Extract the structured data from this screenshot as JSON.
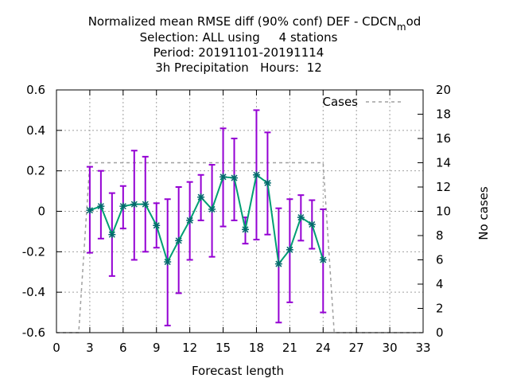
{
  "chart_data": {
    "type": "line",
    "title_lines": [
      "Normalized mean RMSE diff (90% conf) DEF - CDCN",
      "Selection: ALL using     4 stations",
      "Period: 20191101-20191114",
      "3h Precipitation   Hours:  12"
    ],
    "title_sub": "m",
    "title_tail": "od",
    "xlabel": "Forecast length",
    "ylabel": "",
    "y2label": "No cases",
    "xlim": [
      0,
      33
    ],
    "ylim": [
      -0.6,
      0.6
    ],
    "y2lim": [
      0,
      20
    ],
    "x_ticks": [
      "0",
      "3",
      "6",
      "9",
      "12",
      "15",
      "18",
      "21",
      "24",
      "27",
      "30",
      "33"
    ],
    "y_ticks": [
      "-0.6",
      "-0.4",
      "-0.2",
      "0",
      "0.2",
      "0.4",
      "0.6"
    ],
    "y2_ticks": [
      "0",
      "2",
      "4",
      "6",
      "8",
      "10",
      "12",
      "14",
      "16",
      "18",
      "20"
    ],
    "grid": true,
    "legend": {
      "position": "top-right",
      "entries": [
        "Cases"
      ]
    },
    "series": [
      {
        "name": "",
        "kind": "line-errorbars",
        "color": "#009e73",
        "errorbar_color": "#9400d3",
        "x": [
          3,
          4,
          5,
          6,
          7,
          8,
          9,
          10,
          11,
          12,
          13,
          14,
          15,
          16,
          17,
          18,
          19,
          20,
          21,
          22,
          23,
          24
        ],
        "y": [
          0.005,
          0.025,
          -0.115,
          0.025,
          0.035,
          0.035,
          -0.07,
          -0.25,
          -0.145,
          -0.045,
          0.07,
          0.01,
          0.17,
          0.165,
          -0.09,
          0.18,
          0.14,
          -0.26,
          -0.19,
          -0.03,
          -0.065,
          -0.24
        ],
        "y_low": [
          -0.205,
          -0.135,
          -0.32,
          -0.085,
          -0.24,
          -0.2,
          -0.18,
          -0.565,
          -0.405,
          -0.24,
          -0.045,
          -0.225,
          -0.075,
          -0.045,
          -0.16,
          -0.14,
          -0.115,
          -0.55,
          -0.45,
          -0.145,
          -0.185,
          -0.5
        ],
        "y_high": [
          0.22,
          0.2,
          0.09,
          0.125,
          0.3,
          0.27,
          0.04,
          0.06,
          0.12,
          0.145,
          0.18,
          0.23,
          0.41,
          0.36,
          -0.03,
          0.5,
          0.39,
          0.015,
          0.06,
          0.08,
          0.055,
          0.01
        ]
      },
      {
        "name": "Cases",
        "kind": "dashed",
        "axis": "y2",
        "color": "#a0a0a0",
        "x": [
          0,
          2,
          3,
          24,
          25,
          33
        ],
        "y": [
          0,
          0,
          14,
          14,
          0,
          0
        ]
      }
    ]
  }
}
